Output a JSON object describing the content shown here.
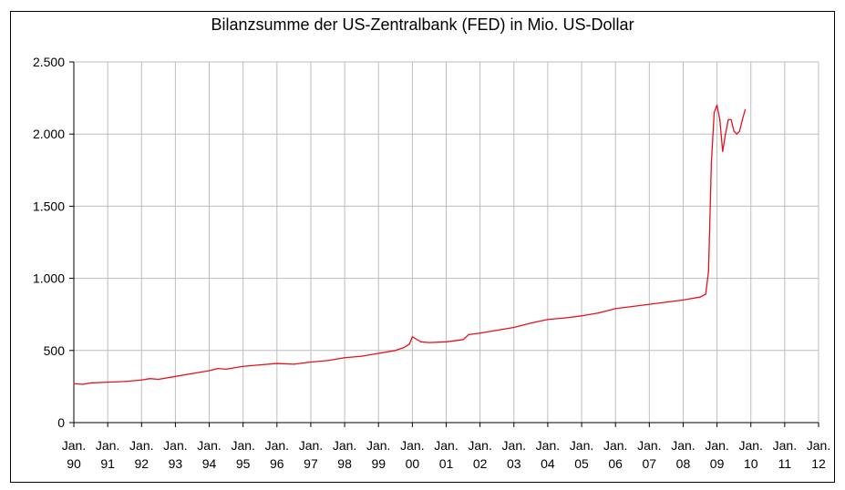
{
  "chart_data": {
    "type": "line",
    "title": "Bilanzsumme der US-Zentralbank (FED) in Mio. US-Dollar",
    "xlabel": "",
    "ylabel": "",
    "ylim": [
      0,
      2500
    ],
    "y_ticks": [
      0,
      500,
      1000,
      1500,
      2000,
      2500
    ],
    "y_tick_labels": [
      "0",
      "500",
      "1.000",
      "1.500",
      "2.000",
      "2.500"
    ],
    "x_ticks": [
      {
        "line1": "Jan.",
        "line2": "90"
      },
      {
        "line1": "Jan.",
        "line2": "91"
      },
      {
        "line1": "Jan.",
        "line2": "92"
      },
      {
        "line1": "Jan.",
        "line2": "93"
      },
      {
        "line1": "Jan.",
        "line2": "94"
      },
      {
        "line1": "Jan.",
        "line2": "95"
      },
      {
        "line1": "Jan.",
        "line2": "96"
      },
      {
        "line1": "Jan.",
        "line2": "97"
      },
      {
        "line1": "Jan.",
        "line2": "98"
      },
      {
        "line1": "Jan.",
        "line2": "99"
      },
      {
        "line1": "Jan.",
        "line2": "00"
      },
      {
        "line1": "Jan.",
        "line2": "01"
      },
      {
        "line1": "Jan.",
        "line2": "02"
      },
      {
        "line1": "Jan.",
        "line2": "03"
      },
      {
        "line1": "Jan.",
        "line2": "04"
      },
      {
        "line1": "Jan.",
        "line2": "05"
      },
      {
        "line1": "Jan.",
        "line2": "06"
      },
      {
        "line1": "Jan.",
        "line2": "07"
      },
      {
        "line1": "Jan.",
        "line2": "08"
      },
      {
        "line1": "Jan.",
        "line2": "09"
      },
      {
        "line1": "Jan.",
        "line2": "10"
      },
      {
        "line1": "Jan.",
        "line2": "11"
      },
      {
        "line1": "Jan.",
        "line2": "12"
      }
    ],
    "x_range": [
      "1990-01",
      "2012-01"
    ],
    "grid": true,
    "line_color": "#e8101b",
    "series": [
      {
        "x": [
          "1990-01",
          "1990-04",
          "1990-07",
          "1991-01",
          "1991-07",
          "1992-01",
          "1992-04",
          "1992-07",
          "1993-01",
          "1993-07",
          "1994-01",
          "1994-04",
          "1994-07",
          "1995-01",
          "1995-07",
          "1996-01",
          "1996-07",
          "1997-01",
          "1997-07",
          "1998-01",
          "1998-07",
          "1999-01",
          "1999-07",
          "1999-10",
          "1999-12",
          "2000-01",
          "2000-04",
          "2000-07",
          "2001-01",
          "2001-07",
          "2001-09",
          "2002-01",
          "2002-07",
          "2003-01",
          "2003-07",
          "2004-01",
          "2004-07",
          "2005-01",
          "2005-07",
          "2006-01",
          "2006-07",
          "2007-01",
          "2007-07",
          "2008-01",
          "2008-04",
          "2008-07",
          "2008-08",
          "2008-09",
          "2008-10",
          "2008-11",
          "2008-12",
          "2009-01",
          "2009-02",
          "2009-03",
          "2009-04",
          "2009-05",
          "2009-06",
          "2009-07",
          "2009-08",
          "2009-09",
          "2009-10",
          "2009-11"
        ],
        "values": [
          270,
          265,
          275,
          280,
          285,
          295,
          305,
          300,
          320,
          340,
          360,
          375,
          370,
          390,
          400,
          410,
          405,
          420,
          430,
          450,
          460,
          480,
          500,
          520,
          545,
          595,
          560,
          555,
          560,
          575,
          610,
          620,
          640,
          660,
          690,
          715,
          725,
          740,
          760,
          790,
          805,
          820,
          835,
          850,
          860,
          870,
          880,
          890,
          1050,
          1800,
          2150,
          2200,
          2100,
          1880,
          2000,
          2100,
          2100,
          2020,
          2000,
          2020,
          2100,
          2170
        ]
      }
    ]
  }
}
